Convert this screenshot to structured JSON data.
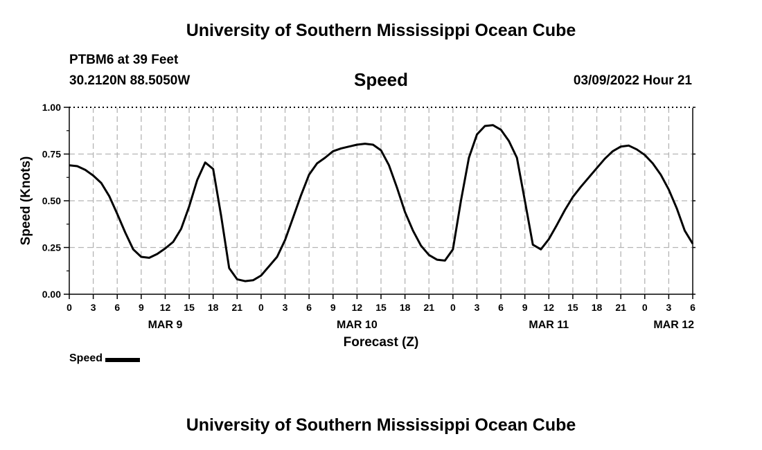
{
  "header": {
    "title": "University of Southern Mississippi Ocean Cube",
    "station": "PTBM6 at 39 Feet",
    "coords": "30.2120N  88.5050W",
    "subtitle": "Speed",
    "datetime": "03/09/2022 Hour 21"
  },
  "footer": {
    "title": "University of Southern Mississippi Ocean Cube"
  },
  "legend": {
    "label": "Speed",
    "color": "#000000"
  },
  "chart_data": {
    "type": "line",
    "title": "Speed",
    "xlabel": "Forecast (Z)",
    "ylabel": "Speed (Knots)",
    "xlim": [
      0,
      78
    ],
    "ylim": [
      0,
      1
    ],
    "grid": true,
    "y_ticks": [
      {
        "value": 0,
        "label": "0.00"
      },
      {
        "value": 0.25,
        "label": "0.25"
      },
      {
        "value": 0.5,
        "label": "0.50"
      },
      {
        "value": 0.75,
        "label": "0.75"
      },
      {
        "value": 1,
        "label": "1.00"
      }
    ],
    "x_ticks": [
      {
        "value": 0,
        "label": "0"
      },
      {
        "value": 3,
        "label": "3"
      },
      {
        "value": 6,
        "label": "6"
      },
      {
        "value": 9,
        "label": "9"
      },
      {
        "value": 12,
        "label": "12"
      },
      {
        "value": 15,
        "label": "15"
      },
      {
        "value": 18,
        "label": "18"
      },
      {
        "value": 21,
        "label": "21"
      },
      {
        "value": 24,
        "label": "0"
      },
      {
        "value": 27,
        "label": "3"
      },
      {
        "value": 30,
        "label": "6"
      },
      {
        "value": 33,
        "label": "9"
      },
      {
        "value": 36,
        "label": "12"
      },
      {
        "value": 39,
        "label": "15"
      },
      {
        "value": 42,
        "label": "18"
      },
      {
        "value": 45,
        "label": "21"
      },
      {
        "value": 48,
        "label": "0"
      },
      {
        "value": 51,
        "label": "3"
      },
      {
        "value": 54,
        "label": "6"
      },
      {
        "value": 57,
        "label": "9"
      },
      {
        "value": 60,
        "label": "12"
      },
      {
        "value": 63,
        "label": "15"
      },
      {
        "value": 66,
        "label": "18"
      },
      {
        "value": 69,
        "label": "21"
      },
      {
        "value": 72,
        "label": "0"
      },
      {
        "value": 75,
        "label": "3"
      },
      {
        "value": 78,
        "label": "6"
      }
    ],
    "date_labels": [
      {
        "value": 12,
        "label": "MAR 9"
      },
      {
        "value": 36,
        "label": "MAR 10"
      },
      {
        "value": 60,
        "label": "MAR 11"
      },
      {
        "value": 78,
        "label": "MAR 12"
      }
    ],
    "series": [
      {
        "name": "Speed",
        "color": "#000000",
        "x": [
          0,
          1,
          2,
          3,
          4,
          5,
          6,
          7,
          8,
          9,
          10,
          11,
          12,
          13,
          14,
          15,
          16,
          17,
          18,
          19,
          20,
          21,
          22,
          23,
          24,
          25,
          26,
          27,
          28,
          29,
          30,
          31,
          32,
          33,
          34,
          35,
          36,
          37,
          38,
          39,
          40,
          41,
          42,
          43,
          44,
          45,
          46,
          47,
          48,
          49,
          50,
          51,
          52,
          53,
          54,
          55,
          56,
          57,
          58,
          59,
          60,
          61,
          62,
          63,
          64,
          65,
          66,
          67,
          68,
          69,
          70,
          71,
          72,
          73,
          74,
          75,
          76,
          77,
          78
        ],
        "values": [
          0.69,
          0.685,
          0.665,
          0.635,
          0.595,
          0.525,
          0.43,
          0.33,
          0.24,
          0.2,
          0.195,
          0.215,
          0.245,
          0.28,
          0.35,
          0.47,
          0.61,
          0.705,
          0.67,
          0.42,
          0.14,
          0.08,
          0.07,
          0.075,
          0.1,
          0.15,
          0.2,
          0.29,
          0.41,
          0.53,
          0.64,
          0.7,
          0.73,
          0.765,
          0.78,
          0.79,
          0.8,
          0.805,
          0.8,
          0.77,
          0.69,
          0.57,
          0.44,
          0.34,
          0.26,
          0.21,
          0.185,
          0.18,
          0.24,
          0.5,
          0.73,
          0.855,
          0.9,
          0.905,
          0.88,
          0.82,
          0.73,
          0.5,
          0.265,
          0.24,
          0.295,
          0.37,
          0.45,
          0.52,
          0.575,
          0.625,
          0.675,
          0.725,
          0.765,
          0.79,
          0.795,
          0.775,
          0.745,
          0.7,
          0.64,
          0.56,
          0.46,
          0.34,
          0.27
        ]
      }
    ]
  }
}
